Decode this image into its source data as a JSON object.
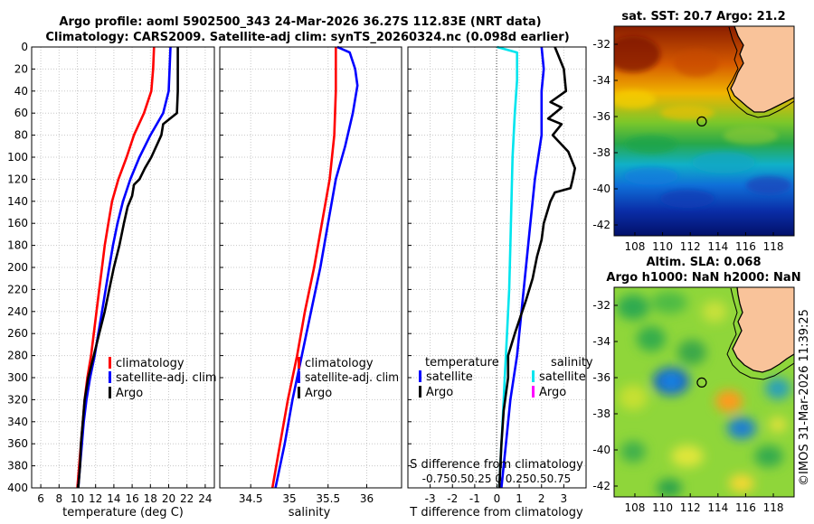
{
  "header": {
    "title_line1": "Argo profile: aoml 5902500_343 24-Mar-2026 36.27S 112.83E (NRT data)",
    "title_line2": "Climatology: CARS2009. Satellite-adj clim: synTS_20260324.nc (0.098d earlier)"
  },
  "footer": {
    "credit": "©IMOS 31-Mar-2026 11:39:25"
  },
  "colors": {
    "climatology": "#ff0000",
    "satellite": "#0000ff",
    "argo": "#000000",
    "sal_satellite": "#00e5ee",
    "sal_argo": "#ff00ff",
    "grid": "#bdbdbd",
    "land": "#f9c39a"
  },
  "chart_data": [
    {
      "type": "line",
      "name": "temperature",
      "xlabel": "temperature (deg C)",
      "xlim": [
        5,
        25
      ],
      "ylim": [
        400,
        0
      ],
      "xticks": [
        "6",
        "8",
        "10",
        "12",
        "14",
        "16",
        "18",
        "20",
        "22",
        "24"
      ],
      "yticks": [
        "0",
        "20",
        "40",
        "60",
        "80",
        "100",
        "120",
        "140",
        "160",
        "180",
        "200",
        "220",
        "240",
        "260",
        "280",
        "300",
        "320",
        "340",
        "360",
        "380",
        "400"
      ],
      "legend": [
        "climatology",
        "satellite-adj. clim",
        "Argo"
      ],
      "series": [
        {
          "name": "climatology",
          "color": "red",
          "points": [
            [
              18.4,
              0
            ],
            [
              18.3,
              20
            ],
            [
              18.1,
              40
            ],
            [
              17.3,
              60
            ],
            [
              16.2,
              80
            ],
            [
              15.4,
              100
            ],
            [
              14.5,
              120
            ],
            [
              13.8,
              140
            ],
            [
              13.4,
              160
            ],
            [
              13.0,
              180
            ],
            [
              12.7,
              200
            ],
            [
              12.4,
              220
            ],
            [
              12.1,
              240
            ],
            [
              11.8,
              260
            ],
            [
              11.5,
              280
            ],
            [
              11.1,
              300
            ],
            [
              10.8,
              320
            ],
            [
              10.6,
              340
            ],
            [
              10.4,
              360
            ],
            [
              10.2,
              380
            ],
            [
              10.0,
              400
            ]
          ]
        },
        {
          "name": "satellite-adj. clim",
          "color": "blue",
          "points": [
            [
              20.2,
              0
            ],
            [
              20.1,
              20
            ],
            [
              20.0,
              40
            ],
            [
              19.4,
              60
            ],
            [
              18.0,
              80
            ],
            [
              16.8,
              100
            ],
            [
              15.8,
              120
            ],
            [
              15.0,
              140
            ],
            [
              14.4,
              160
            ],
            [
              13.9,
              180
            ],
            [
              13.5,
              200
            ],
            [
              13.1,
              220
            ],
            [
              12.7,
              240
            ],
            [
              12.3,
              260
            ],
            [
              11.9,
              280
            ],
            [
              11.4,
              300
            ],
            [
              11.0,
              320
            ],
            [
              10.7,
              340
            ],
            [
              10.5,
              360
            ],
            [
              10.3,
              380
            ],
            [
              10.1,
              400
            ]
          ]
        },
        {
          "name": "Argo",
          "color": "black",
          "points": [
            [
              21.0,
              0
            ],
            [
              21.0,
              20
            ],
            [
              21.0,
              40
            ],
            [
              20.9,
              60
            ],
            [
              19.4,
              70
            ],
            [
              19.2,
              80
            ],
            [
              18.1,
              100
            ],
            [
              17.4,
              110
            ],
            [
              16.8,
              120
            ],
            [
              16.2,
              125
            ],
            [
              16.0,
              135
            ],
            [
              15.5,
              145
            ],
            [
              15.1,
              160
            ],
            [
              14.6,
              180
            ],
            [
              14.0,
              200
            ],
            [
              13.5,
              220
            ],
            [
              13.0,
              240
            ],
            [
              12.4,
              260
            ],
            [
              11.8,
              280
            ],
            [
              11.2,
              300
            ],
            [
              10.8,
              320
            ],
            [
              10.6,
              340
            ],
            [
              10.4,
              360
            ],
            [
              10.3,
              380
            ],
            [
              10.1,
              400
            ]
          ]
        }
      ]
    },
    {
      "type": "line",
      "name": "salinity",
      "xlabel": "salinity",
      "xlim": [
        34.1,
        36.45
      ],
      "ylim": [
        400,
        0
      ],
      "xticks": [
        "34.5",
        "35",
        "35.5",
        "36"
      ],
      "legend": [
        "climatology",
        "satellite-adj. clim",
        "Argo"
      ],
      "series": [
        {
          "name": "climatology",
          "color": "red",
          "points": [
            [
              35.6,
              0
            ],
            [
              35.6,
              40
            ],
            [
              35.58,
              80
            ],
            [
              35.52,
              120
            ],
            [
              35.42,
              160
            ],
            [
              35.32,
              200
            ],
            [
              35.2,
              240
            ],
            [
              35.1,
              280
            ],
            [
              34.98,
              320
            ],
            [
              34.88,
              360
            ],
            [
              34.78,
              400
            ]
          ]
        },
        {
          "name": "satellite-adj. clim",
          "color": "blue",
          "points": [
            [
              35.62,
              0
            ],
            [
              35.78,
              5
            ],
            [
              35.85,
              20
            ],
            [
              35.88,
              35
            ],
            [
              35.82,
              60
            ],
            [
              35.72,
              90
            ],
            [
              35.6,
              120
            ],
            [
              35.5,
              160
            ],
            [
              35.4,
              200
            ],
            [
              35.28,
              240
            ],
            [
              35.16,
              280
            ],
            [
              35.04,
              320
            ],
            [
              34.94,
              360
            ],
            [
              34.82,
              400
            ]
          ]
        }
      ]
    },
    {
      "type": "line",
      "name": "difference",
      "xlabel": "T difference from climatology",
      "top_xlabel": "S difference from climatology",
      "xlim": [
        -4,
        4
      ],
      "ylim": [
        400,
        0
      ],
      "xticks": [
        "-3",
        "-2",
        "-1",
        "0",
        "1",
        "2",
        "3"
      ],
      "top_xticks_text": "-0.750.50.25  0  0.250.50.75",
      "legend_temperature": {
        "title": "temperature",
        "items": [
          "satellite",
          "Argo"
        ]
      },
      "legend_salinity": {
        "title": "salinity",
        "items": [
          "satellite",
          "Argo"
        ]
      },
      "series": [
        {
          "name": "salinity satellite",
          "color": "cyan",
          "points": [
            [
              0,
              0
            ],
            [
              0.9,
              5
            ],
            [
              0.9,
              30
            ],
            [
              0.8,
              60
            ],
            [
              0.7,
              100
            ],
            [
              0.65,
              140
            ],
            [
              0.6,
              180
            ],
            [
              0.55,
              220
            ],
            [
              0.45,
              260
            ],
            [
              0.35,
              300
            ],
            [
              0.25,
              340
            ],
            [
              0.15,
              380
            ],
            [
              0.1,
              400
            ]
          ]
        },
        {
          "name": "temperature satellite",
          "color": "blue",
          "points": [
            [
              2.0,
              0
            ],
            [
              2.1,
              20
            ],
            [
              2.0,
              40
            ],
            [
              2.0,
              80
            ],
            [
              1.7,
              120
            ],
            [
              1.5,
              160
            ],
            [
              1.3,
              200
            ],
            [
              1.1,
              240
            ],
            [
              0.9,
              280
            ],
            [
              0.6,
              320
            ],
            [
              0.4,
              360
            ],
            [
              0.2,
              400
            ]
          ]
        },
        {
          "name": "temperature Argo",
          "color": "black",
          "points": [
            [
              2.6,
              0
            ],
            [
              3.0,
              20
            ],
            [
              3.1,
              40
            ],
            [
              2.4,
              50
            ],
            [
              2.9,
              55
            ],
            [
              2.3,
              65
            ],
            [
              2.9,
              70
            ],
            [
              2.5,
              80
            ],
            [
              3.2,
              95
            ],
            [
              3.5,
              110
            ],
            [
              3.4,
              120
            ],
            [
              3.3,
              128
            ],
            [
              2.6,
              132
            ],
            [
              2.4,
              140
            ],
            [
              2.1,
              160
            ],
            [
              2.0,
              175
            ],
            [
              1.8,
              190
            ],
            [
              1.6,
              210
            ],
            [
              1.3,
              230
            ],
            [
              0.8,
              260
            ],
            [
              0.5,
              280
            ],
            [
              0.5,
              300
            ],
            [
              0.3,
              330
            ],
            [
              0.2,
              360
            ],
            [
              0.1,
              400
            ]
          ]
        }
      ]
    },
    {
      "type": "heatmap",
      "name": "sat_sst",
      "title": "sat. SST: 20.7  Argo: 21.2",
      "xticks": [
        "108",
        "110",
        "112",
        "114",
        "116",
        "118"
      ],
      "yticks": [
        "-32",
        "-34",
        "-36",
        "-38",
        "-40",
        "-42"
      ],
      "marker": [
        112.83,
        -36.27
      ]
    },
    {
      "type": "heatmap",
      "name": "sla",
      "title_line1": "Altim. SLA: 0.068",
      "title_line2": "Argo h1000: NaN h2000: NaN",
      "xticks": [
        "108",
        "110",
        "112",
        "114",
        "116",
        "118"
      ],
      "yticks": [
        "-32",
        "-34",
        "-36",
        "-38",
        "-40",
        "-42"
      ],
      "marker": [
        112.83,
        -36.27
      ]
    }
  ]
}
